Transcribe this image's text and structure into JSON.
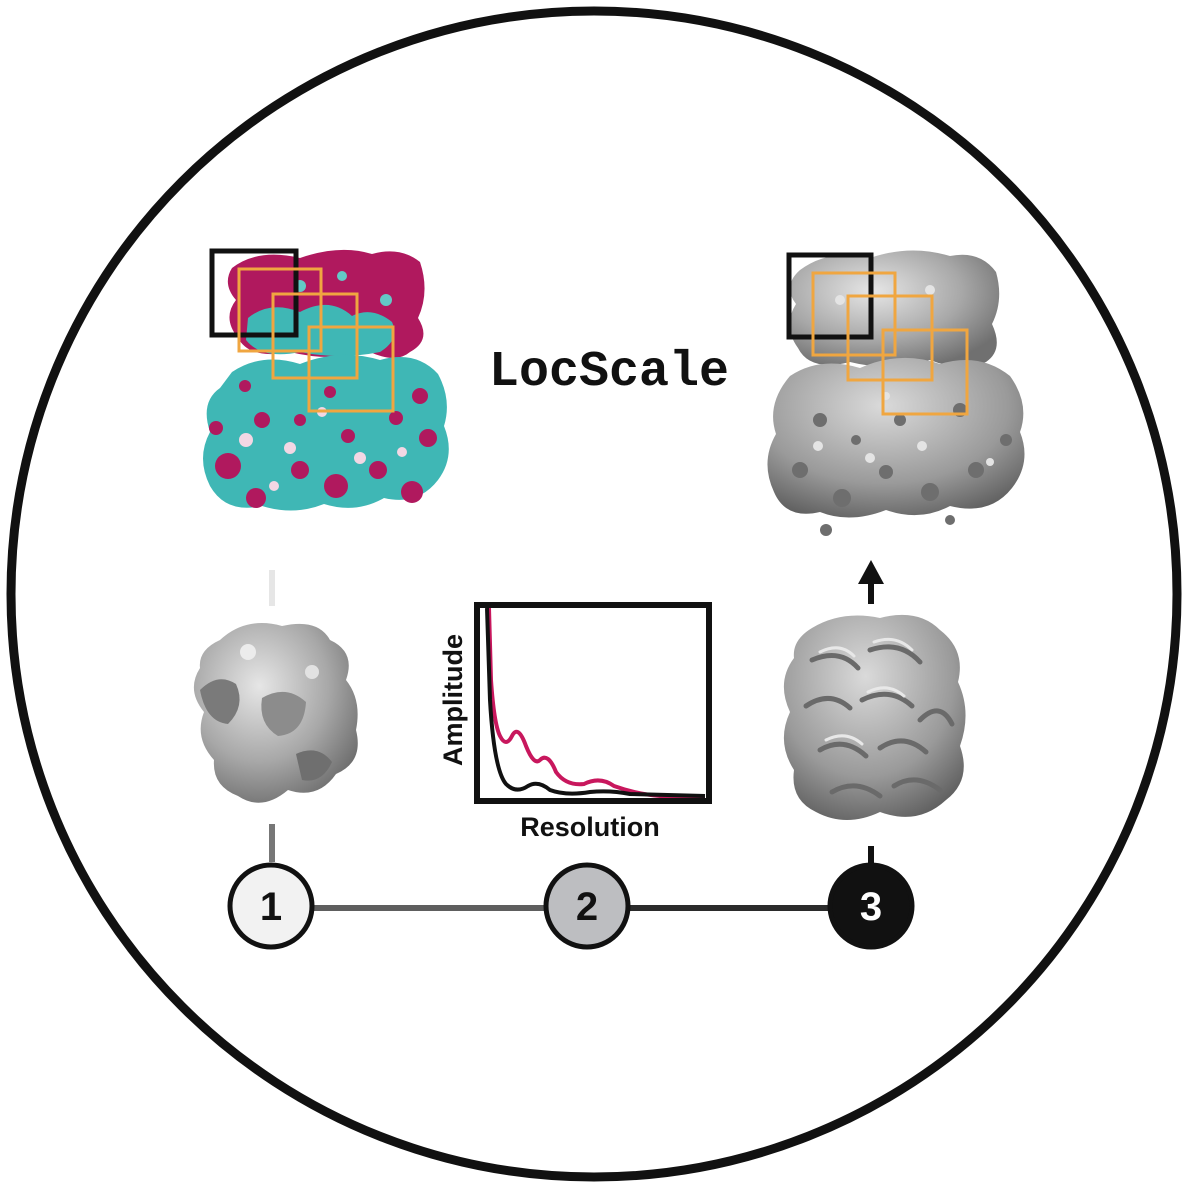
{
  "title": "LocScale",
  "plot": {
    "ylabel": "Amplitude",
    "xlabel": "Resolution",
    "series_colors": {
      "reference": "#c8175d",
      "map": "#111111"
    }
  },
  "steps": [
    {
      "number": "1",
      "fill": "#f2f2f2",
      "text_color": "#111111"
    },
    {
      "number": "2",
      "fill": "#bdbec1",
      "text_color": "#111111"
    },
    {
      "number": "3",
      "fill": "#111111",
      "text_color": "#ffffff"
    }
  ],
  "colors": {
    "outline": "#111111",
    "window_box": "#f0a640",
    "map_cyan": "#3fb7b5",
    "map_magenta": "#b0195e",
    "map_grey": "#a9a9a9"
  }
}
